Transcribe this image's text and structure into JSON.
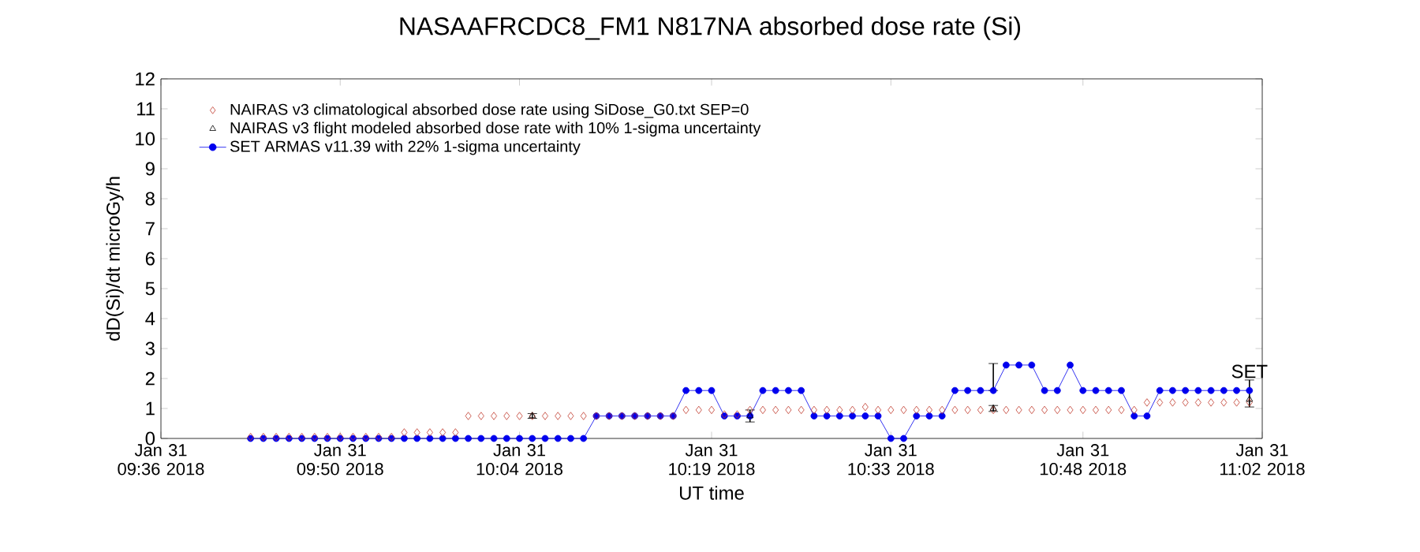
{
  "chart_data": {
    "type": "line",
    "title": "NASAAFRCDC8_FM1   N817NA absorbed dose rate (Si)",
    "xlabel": "UT time",
    "ylabel": "dD(Si)/dt microGy/h",
    "xlim": [
      "2018-01-31T09:36",
      "2018-01-31T11:02"
    ],
    "ylim": [
      0,
      12
    ],
    "yticks": [
      0,
      1,
      2,
      3,
      4,
      5,
      6,
      7,
      8,
      9,
      10,
      11,
      12
    ],
    "xticks": [
      {
        "value": "2018-01-31T09:36",
        "label": "Jan 31 09:36 2018"
      },
      {
        "value": "2018-01-31T09:50",
        "label": "Jan 31 09:50 2018"
      },
      {
        "value": "2018-01-31T10:04",
        "label": "Jan 31 10:04 2018"
      },
      {
        "value": "2018-01-31T10:19",
        "label": "Jan 31 10:19 2018"
      },
      {
        "value": "2018-01-31T10:33",
        "label": "Jan 31 10:33 2018"
      },
      {
        "value": "2018-01-31T10:48",
        "label": "Jan 31 10:48 2018"
      },
      {
        "value": "2018-01-31T11:02",
        "label": "Jan 31 11:02 2018"
      }
    ],
    "legend": "top left",
    "grid": false,
    "x": [
      "2018-01-31T09:43",
      "2018-01-31T09:44",
      "2018-01-31T09:45",
      "2018-01-31T09:46",
      "2018-01-31T09:47",
      "2018-01-31T09:48",
      "2018-01-31T09:49",
      "2018-01-31T09:50",
      "2018-01-31T09:51",
      "2018-01-31T09:52",
      "2018-01-31T09:53",
      "2018-01-31T09:54",
      "2018-01-31T09:55",
      "2018-01-31T09:56",
      "2018-01-31T09:57",
      "2018-01-31T09:58",
      "2018-01-31T09:59",
      "2018-01-31T10:00",
      "2018-01-31T10:01",
      "2018-01-31T10:02",
      "2018-01-31T10:03",
      "2018-01-31T10:04",
      "2018-01-31T10:05",
      "2018-01-31T10:06",
      "2018-01-31T10:07",
      "2018-01-31T10:08",
      "2018-01-31T10:09",
      "2018-01-31T10:10",
      "2018-01-31T10:11",
      "2018-01-31T10:12",
      "2018-01-31T10:13",
      "2018-01-31T10:14",
      "2018-01-31T10:15",
      "2018-01-31T10:16",
      "2018-01-31T10:17",
      "2018-01-31T10:18",
      "2018-01-31T10:19",
      "2018-01-31T10:20",
      "2018-01-31T10:21",
      "2018-01-31T10:22",
      "2018-01-31T10:23",
      "2018-01-31T10:24",
      "2018-01-31T10:25",
      "2018-01-31T10:26",
      "2018-01-31T10:27",
      "2018-01-31T10:28",
      "2018-01-31T10:29",
      "2018-01-31T10:30",
      "2018-01-31T10:31",
      "2018-01-31T10:32",
      "2018-01-31T10:33",
      "2018-01-31T10:34",
      "2018-01-31T10:35",
      "2018-01-31T10:36",
      "2018-01-31T10:37",
      "2018-01-31T10:38",
      "2018-01-31T10:39",
      "2018-01-31T10:40",
      "2018-01-31T10:41",
      "2018-01-31T10:42",
      "2018-01-31T10:43",
      "2018-01-31T10:44",
      "2018-01-31T10:45",
      "2018-01-31T10:46",
      "2018-01-31T10:47",
      "2018-01-31T10:48",
      "2018-01-31T10:49",
      "2018-01-31T10:50",
      "2018-01-31T10:51",
      "2018-01-31T10:52",
      "2018-01-31T10:53",
      "2018-01-31T10:54",
      "2018-01-31T10:55",
      "2018-01-31T10:56",
      "2018-01-31T10:57",
      "2018-01-31T10:58",
      "2018-01-31T10:59",
      "2018-01-31T11:00",
      "2018-01-31T11:01"
    ],
    "series": [
      {
        "name": "NAIRAS v3 climatological absorbed dose rate using SiDose_G0.txt SEP=0",
        "type": "scatter",
        "marker": "diamond",
        "color": "#c0392b",
        "values": [
          0.05,
          0.05,
          0.05,
          0.05,
          0.05,
          0.05,
          0.05,
          0.05,
          0.05,
          0.05,
          0.05,
          0.05,
          0.2,
          0.2,
          0.2,
          0.2,
          0.2,
          0.75,
          0.75,
          0.75,
          0.75,
          0.75,
          0.75,
          0.75,
          0.75,
          0.75,
          0.75,
          0.75,
          0.75,
          0.75,
          0.75,
          0.75,
          0.75,
          0.75,
          0.95,
          0.95,
          0.95,
          0.8,
          0.8,
          0.95,
          0.95,
          0.95,
          0.95,
          0.95,
          0.95,
          0.95,
          0.95,
          0.95,
          1.05,
          0.95,
          0.95,
          0.95,
          0.95,
          0.95,
          0.95,
          0.95,
          0.95,
          0.95,
          0.95,
          0.95,
          0.95,
          0.95,
          0.95,
          0.95,
          0.95,
          0.95,
          0.95,
          0.95,
          0.95,
          0.95,
          1.2,
          1.2,
          1.2,
          1.2,
          1.2,
          1.2,
          1.2,
          1.2,
          1.2
        ]
      },
      {
        "name": "NAIRAS v3 flight modeled absorbed dose rate with 10% 1-sigma uncertainty",
        "type": "scatter",
        "marker": "triangle",
        "color": "#000000",
        "x": [
          "2018-01-31T10:05",
          "2018-01-31T10:22",
          "2018-01-31T10:41",
          "2018-01-31T11:01"
        ],
        "values": [
          0.75,
          0.75,
          1.0,
          1.3
        ],
        "errors": [
          0.08,
          0.2,
          0.1,
          null
        ]
      },
      {
        "name": "SET ARMAS v11.39 with 22% 1-sigma uncertainty",
        "marker": "circle",
        "line_style": "solid",
        "color": "#0000ee",
        "values": [
          0,
          0,
          0,
          0,
          0,
          0,
          0,
          0,
          0,
          0,
          0,
          0,
          0,
          0,
          0,
          0,
          0,
          0,
          0,
          0,
          0,
          0,
          0,
          0,
          0,
          0,
          0,
          0.75,
          0.75,
          0.75,
          0.75,
          0.75,
          0.75,
          0.75,
          1.6,
          1.6,
          1.6,
          0.75,
          0.75,
          0.75,
          1.6,
          1.6,
          1.6,
          1.6,
          0.75,
          0.75,
          0.75,
          0.75,
          0.75,
          0.75,
          0,
          0,
          0.75,
          0.75,
          0.75,
          1.6,
          1.6,
          1.6,
          1.6,
          2.45,
          2.45,
          2.45,
          1.6,
          1.6,
          2.45,
          1.6,
          1.6,
          1.6,
          1.6,
          0.75,
          0.75,
          1.6,
          1.6,
          1.6,
          1.6,
          1.6,
          1.6,
          1.6,
          1.6
        ],
        "errors": [
          null,
          null,
          null,
          null,
          null,
          null,
          null,
          null,
          null,
          null,
          null,
          null,
          null,
          null,
          null,
          null,
          null,
          null,
          null,
          null,
          null,
          null,
          null,
          null,
          null,
          null,
          null,
          null,
          null,
          null,
          null,
          null,
          null,
          null,
          null,
          null,
          null,
          null,
          null,
          null,
          null,
          null,
          null,
          null,
          null,
          null,
          null,
          null,
          null,
          null,
          null,
          null,
          null,
          null,
          null,
          null,
          null,
          null,
          [
            1.6,
            2.5
          ],
          null,
          null,
          null,
          null,
          null,
          null,
          null,
          null,
          null,
          null,
          null,
          null,
          null,
          null,
          null,
          null,
          null,
          null,
          null,
          [
            1.05,
            1.95
          ]
        ]
      }
    ],
    "annotations": [
      {
        "text": "SET",
        "x": "2018-01-31T11:01",
        "y": 1.95
      }
    ]
  }
}
